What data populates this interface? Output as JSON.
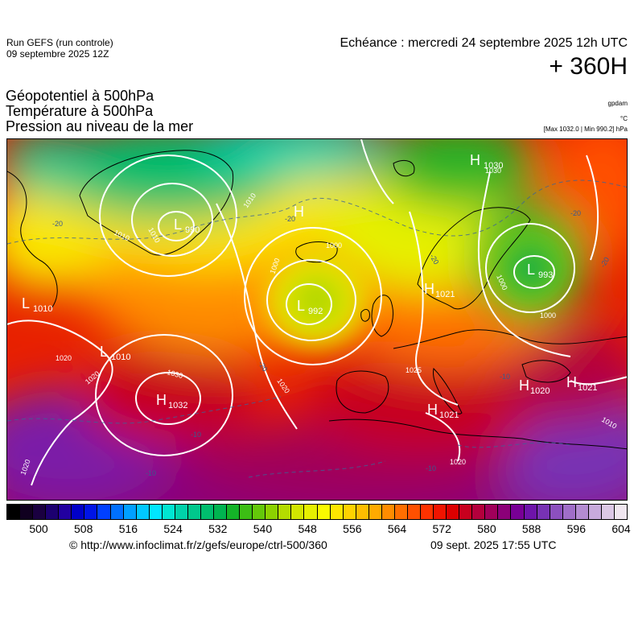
{
  "header": {
    "run_line1": "Run GEFS (run controle)",
    "run_line2": "09 septembre 2025 12Z",
    "echeance": "Echéance : mercredi 24 septembre 2025 12h UTC",
    "lead": "+ 360H"
  },
  "titles": {
    "line1": "Géopotentiel à 500hPa",
    "line2": "Température à 500hPa",
    "line3": "Pression au niveau de la mer"
  },
  "units": {
    "gpdam": "gpdam",
    "celsius": "°C",
    "pressure_range": "[Max 1032.0 | Min 990.2] hPa"
  },
  "pressure_centers": [
    {
      "type": "L",
      "value": "990"
    },
    {
      "type": "L",
      "value": "1010"
    },
    {
      "type": "L",
      "value": "1010"
    },
    {
      "type": "H",
      "value": "1032"
    },
    {
      "type": "L",
      "value": "992"
    },
    {
      "type": "H",
      "value": "1030"
    },
    {
      "type": "L",
      "value": "993"
    },
    {
      "type": "H",
      "value": "1021"
    },
    {
      "type": "H",
      "value": "1021"
    },
    {
      "type": "H",
      "value": "1020"
    },
    {
      "type": "H",
      "value": "1021"
    },
    {
      "type": "H",
      "value": ""
    }
  ],
  "isobar_labels": [
    "1010",
    "1010",
    "1010",
    "1000",
    "1000",
    "1000",
    "1000",
    "1020",
    "1020",
    "1020",
    "1020",
    "1030",
    "1030",
    "1025",
    "1010",
    "1020"
  ],
  "temp_labels": [
    "-20",
    "-20",
    "-20",
    "-20",
    "-20",
    "-20",
    "-10",
    "-10",
    "-10",
    "-10"
  ],
  "colorbar": {
    "ticks": [
      "500",
      "508",
      "516",
      "524",
      "532",
      "540",
      "548",
      "556",
      "564",
      "572",
      "580",
      "588",
      "596",
      "604"
    ],
    "colors": [
      "#000000",
      "#100020",
      "#1a0040",
      "#1c0070",
      "#2200a0",
      "#0000c8",
      "#0014e6",
      "#0040ff",
      "#0070ff",
      "#00a0ff",
      "#00c8ff",
      "#00e6ff",
      "#00e6d2",
      "#00d2aa",
      "#00c88c",
      "#00be6e",
      "#00b450",
      "#14b428",
      "#3cbe14",
      "#64c80a",
      "#8cd200",
      "#b4dc00",
      "#d2e600",
      "#e6f000",
      "#fafa00",
      "#ffe600",
      "#ffd200",
      "#ffbe00",
      "#ffaa00",
      "#ff8c00",
      "#ff6e00",
      "#ff5000",
      "#ff3200",
      "#f01400",
      "#dc0000",
      "#c8001e",
      "#b4003c",
      "#a0005a",
      "#8c0078",
      "#780096",
      "#6e14aa",
      "#7832b4",
      "#8c50be",
      "#a06ec8",
      "#b48cd2",
      "#c8aadc",
      "#dcc8e6",
      "#f0e6f0"
    ]
  },
  "footer": {
    "url": "© http://www.infoclimat.fr/z/gefs/europe/ctrl-500/360",
    "date": "09 sept. 2025 17:55 UTC"
  }
}
